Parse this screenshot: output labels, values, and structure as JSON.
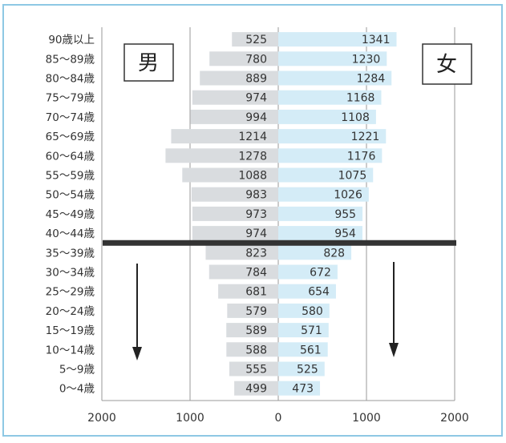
{
  "chart_data": {
    "type": "bar",
    "categories": [
      "90歳以上",
      "85～89歳",
      "80～84歳",
      "75～79歳",
      "70～74歳",
      "65～69歳",
      "60～64歳",
      "55～59歳",
      "50～54歳",
      "45～49歳",
      "40～44歳",
      "35～39歳",
      "30～34歳",
      "25～29歳",
      "20～24歳",
      "15～19歳",
      "10～14歳",
      "5～9歳",
      "0～4歳"
    ],
    "series": [
      {
        "name": "男",
        "values": [
          525,
          780,
          889,
          974,
          994,
          1214,
          1278,
          1088,
          983,
          973,
          974,
          823,
          784,
          681,
          579,
          589,
          588,
          555,
          499
        ],
        "color": "#d9dcdf"
      },
      {
        "name": "女",
        "values": [
          1341,
          1230,
          1284,
          1168,
          1108,
          1221,
          1176,
          1075,
          1026,
          955,
          954,
          828,
          672,
          654,
          580,
          571,
          561,
          525,
          473
        ],
        "color": "#d4ecf7"
      }
    ],
    "x_tick_labels": [
      "2000",
      "1000",
      "0",
      "1000",
      "2000"
    ],
    "xlim": [
      -2000,
      2000
    ],
    "grid": "vertical",
    "colors": {
      "frame": "#8ec8e4",
      "divider": "#333333",
      "text": "#333333"
    },
    "annotations": {
      "divider_between": [
        "40～44歳",
        "35～39歳"
      ],
      "down_arrows": "both-sides"
    }
  }
}
